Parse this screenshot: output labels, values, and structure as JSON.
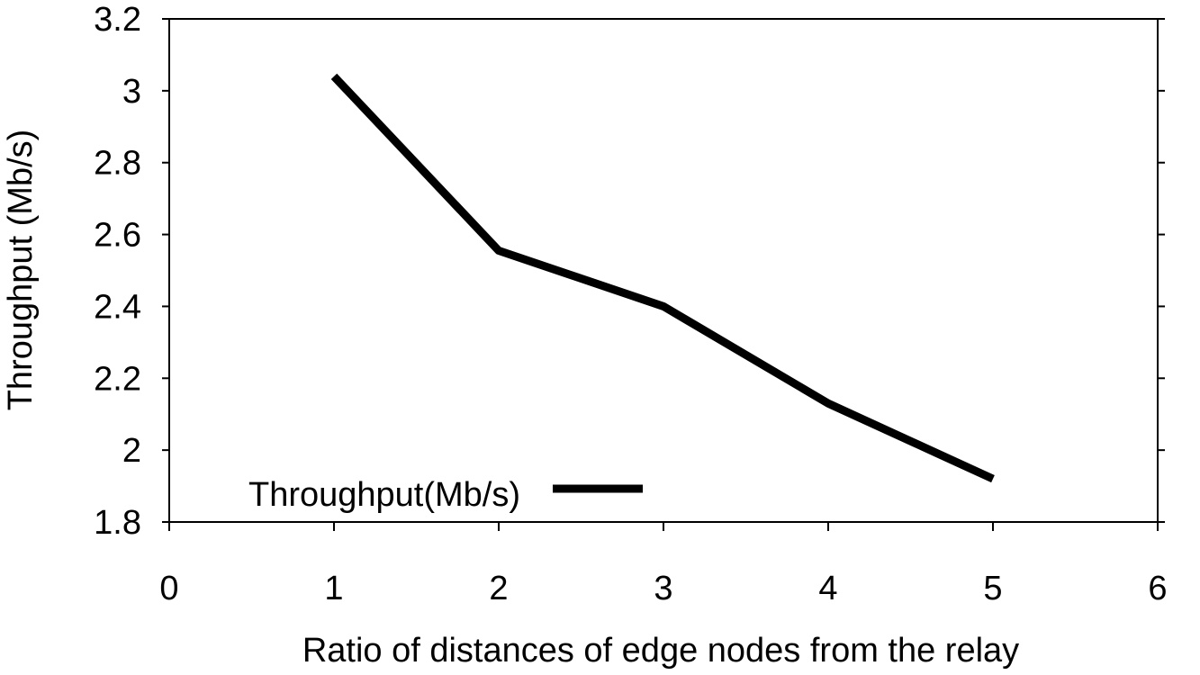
{
  "chart_data": {
    "type": "line",
    "title": "",
    "xlabel": "Ratio of distances of edge nodes from the relay",
    "ylabel": "Throughput (Mb/s)",
    "xlim": [
      0,
      6
    ],
    "ylim": [
      1.8,
      3.2
    ],
    "x_ticks": [
      "0",
      "1",
      "2",
      "3",
      "4",
      "5",
      "6"
    ],
    "y_ticks": [
      "1.8",
      "2",
      "2.2",
      "2.4",
      "2.6",
      "2.8",
      "3",
      "3.2"
    ],
    "grid": false,
    "legend_position": "bottom-left",
    "series": [
      {
        "name": "Throughput(Mb/s)",
        "color": "#000000",
        "x": [
          1,
          2,
          3,
          4,
          5
        ],
        "values": [
          3.04,
          2.555,
          2.4,
          2.13,
          1.92
        ]
      }
    ]
  }
}
